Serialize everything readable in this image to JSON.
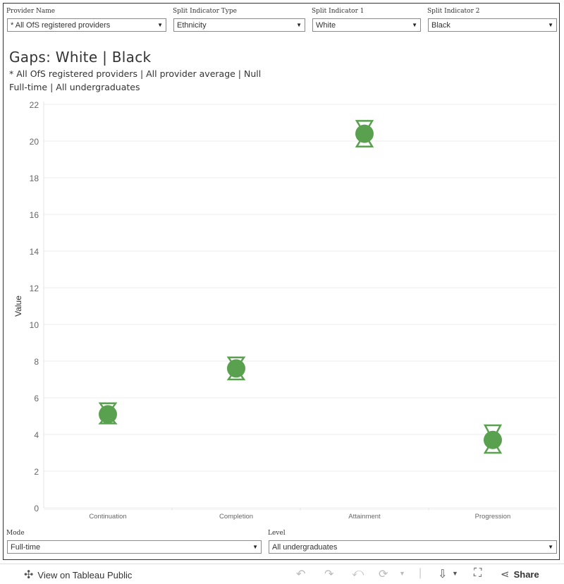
{
  "filters": {
    "provider": {
      "label": "Provider Name",
      "value": "* All OfS registered providers"
    },
    "split_type": {
      "label": "Split Indicator Type",
      "value": "Ethnicity"
    },
    "split1": {
      "label": "Split Indicator 1",
      "value": "White"
    },
    "split2": {
      "label": "Split Indicator 2",
      "value": "Black"
    },
    "mode": {
      "label": "Mode",
      "value": "Full-time"
    },
    "level": {
      "label": "Level",
      "value": "All undergraduates"
    }
  },
  "header": {
    "title": "Gaps:  White | Black",
    "subtitle1": "* All OfS registered providers | All provider average |  Null",
    "subtitle2": "Full-time | All undergraduates"
  },
  "chart_data": {
    "type": "scatter",
    "categories": [
      "Continuation",
      "Completion",
      "Attainment",
      "Progression"
    ],
    "values": [
      5.1,
      7.6,
      20.4,
      3.7
    ],
    "interval_low": [
      4.6,
      7.0,
      19.7,
      3.0
    ],
    "interval_high": [
      5.7,
      8.2,
      21.1,
      4.5
    ],
    "ylabel": "Value",
    "ylim": [
      0,
      22
    ],
    "yticks": [
      0,
      2,
      4,
      6,
      8,
      10,
      12,
      14,
      16,
      18,
      20,
      22
    ],
    "color": "#59a14f",
    "grid": true,
    "legend": "none"
  },
  "footer": {
    "view_label": "View on Tableau Public",
    "share_label": "Share"
  }
}
